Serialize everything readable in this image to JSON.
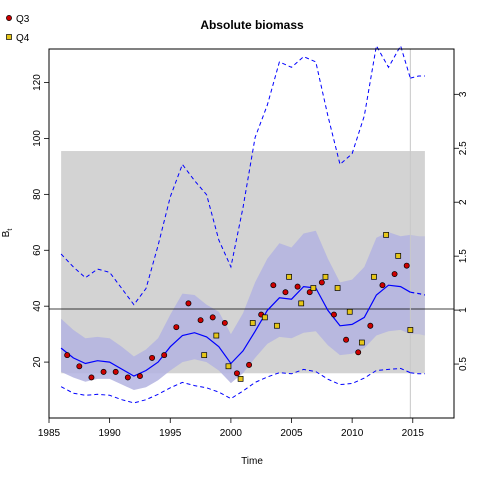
{
  "chart_data": {
    "type": "line",
    "title": "Absolute biomass",
    "xlabel": "Time",
    "ylabel": "B",
    "ylabel_subscript": "t",
    "xlim": [
      1985,
      2018.4
    ],
    "ylim": [
      0,
      132
    ],
    "y2lim": [
      0,
      3.42
    ],
    "x_ticks": [
      1985,
      1990,
      1995,
      2000,
      2005,
      2010,
      2015
    ],
    "y_ticks": [
      20,
      40,
      60,
      80,
      100,
      120
    ],
    "y2_ticks": [
      0.5,
      1,
      1.5,
      2,
      2.5,
      3
    ],
    "legend": [
      {
        "name": "Q3",
        "fill": "#cc0000"
      },
      {
        "name": "Q4",
        "fill": "#e6c619"
      }
    ],
    "legend_position": "top-left",
    "reference_band": {
      "x": [
        1986,
        2016
      ],
      "y": [
        16,
        95.5
      ],
      "color": "#d3d3d3"
    },
    "reference_line": {
      "y": 39
    },
    "vertical_line": {
      "x": 2014.8
    },
    "line_color": "#0000ff",
    "ci_color": "#b3b3e0",
    "biomass": {
      "x": [
        1986,
        1987,
        1988,
        1989,
        1990,
        1991,
        1992,
        1993,
        1994,
        1995,
        1996,
        1997,
        1998,
        1999,
        2000,
        2001,
        2002,
        2003,
        2004,
        2005,
        2006,
        2007,
        2008,
        2009,
        2010,
        2011,
        2012,
        2013,
        2014,
        2014.8
      ],
      "median": [
        25,
        21.5,
        19.5,
        20.5,
        20,
        17.5,
        15,
        17,
        20,
        25.5,
        29.5,
        30.5,
        29,
        25.5,
        19.5,
        24,
        31,
        38.5,
        43,
        42.5,
        47,
        46.5,
        38.5,
        33,
        33.5,
        36,
        44,
        47.5,
        47,
        45
      ],
      "lower": [
        16.5,
        14.5,
        13,
        14,
        14,
        12,
        10,
        11,
        13.5,
        17,
        20,
        21,
        20,
        17,
        12.5,
        16,
        21.5,
        26.5,
        29,
        28.5,
        30.5,
        31,
        26,
        22.5,
        23,
        25,
        29.5,
        31,
        31.5,
        30
      ],
      "upper": [
        35.5,
        31.5,
        28.5,
        29,
        28.5,
        25.5,
        22,
        24.5,
        28.5,
        37,
        44.5,
        44,
        40.5,
        38,
        30,
        37.5,
        48.5,
        57,
        62.5,
        61,
        66,
        67,
        57,
        48.5,
        49.5,
        54,
        64.5,
        66.5,
        65,
        65.5
      ],
      "forecast_x": [
        2014.8,
        2015.5,
        2016
      ],
      "forecast_median": [
        45,
        44.5,
        44
      ],
      "forecast_lower": [
        30,
        30,
        29.5
      ],
      "forecast_upper": [
        65.5,
        65,
        65
      ]
    },
    "fishing": {
      "x": [
        1986,
        1987,
        1988,
        1989,
        1990,
        1991,
        1992,
        1993,
        1994,
        1995,
        1996,
        1997,
        1998,
        1999,
        2000,
        2001,
        2002,
        2003,
        2004,
        2005,
        2006,
        2007,
        2008,
        2009,
        2010,
        2011,
        2012,
        2013,
        2014,
        2014.8
      ],
      "upper": [
        1.52,
        1.4,
        1.3,
        1.38,
        1.35,
        1.2,
        1.05,
        1.2,
        1.6,
        2.05,
        2.35,
        2.2,
        2.07,
        1.65,
        1.4,
        1.95,
        2.6,
        2.9,
        3.3,
        3.25,
        3.35,
        3.3,
        2.8,
        2.35,
        2.45,
        2.8,
        3.45,
        3.25,
        3.45,
        3.15
      ],
      "lower": [
        0.29,
        0.23,
        0.21,
        0.22,
        0.21,
        0.17,
        0.14,
        0.17,
        0.22,
        0.28,
        0.33,
        0.3,
        0.28,
        0.24,
        0.18,
        0.25,
        0.33,
        0.38,
        0.42,
        0.41,
        0.45,
        0.43,
        0.36,
        0.31,
        0.32,
        0.37,
        0.44,
        0.45,
        0.46,
        0.42
      ],
      "forecast_x": [
        2014.8,
        2015.5,
        2016
      ],
      "forecast_upper": [
        3.15,
        3.17,
        3.17
      ],
      "forecast_lower": [
        0.42,
        0.41,
        0.41
      ]
    },
    "series": [
      {
        "name": "Q3",
        "x": [
          1986.5,
          1987.5,
          1988.5,
          1989.5,
          1990.5,
          1991.5,
          1992.5,
          1993.5,
          1994.5,
          1995.5,
          1996.5,
          1997.5,
          1998.5,
          1999.5,
          2000.5,
          2001.5,
          2002.5,
          2003.5,
          2004.5,
          2005.5,
          2006.5,
          2007.5,
          2008.5,
          2009.5,
          2010.5,
          2011.5,
          2012.5,
          2013.5,
          2014.5
        ],
        "y": [
          22.5,
          18.5,
          14.5,
          16.5,
          16.5,
          14.5,
          15,
          21.5,
          22.5,
          32.5,
          41,
          35,
          36,
          34,
          16,
          19,
          37,
          47.5,
          45,
          47,
          45,
          48.5,
          37,
          28,
          23.5,
          33,
          47.5,
          51.5,
          54.5
        ]
      },
      {
        "name": "Q4",
        "x": [
          1997.8,
          1998.8,
          1999.8,
          2000.8,
          2001.8,
          2002.8,
          2003.8,
          2004.8,
          2005.8,
          2006.8,
          2007.8,
          2008.8,
          2009.8,
          2010.8,
          2011.8,
          2012.8,
          2013.8,
          2014.8
        ],
        "y": [
          22.5,
          29.5,
          18.5,
          14,
          34,
          36,
          33,
          50.5,
          41,
          46.5,
          50.5,
          46.5,
          38,
          27,
          50.5,
          65.5,
          58,
          31.5
        ]
      }
    ]
  }
}
